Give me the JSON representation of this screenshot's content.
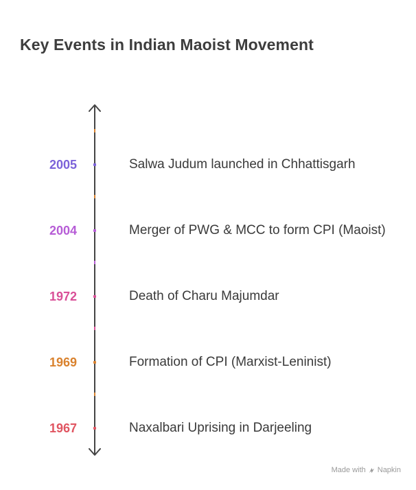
{
  "title": "Key Events in Indian Maoist Movement",
  "events": [
    {
      "year": "2005",
      "description": "Salwa Judum launched in Chhattisgarh",
      "color": "#7b62d9"
    },
    {
      "year": "2004",
      "description": "Merger of PWG & MCC to form CPI (Maoist)",
      "color": "#b65cd6"
    },
    {
      "year": "1972",
      "description": "Death of Charu Majumdar",
      "color": "#d94f97"
    },
    {
      "year": "1969",
      "description": "Formation of CPI (Marxist-Leninist)",
      "color": "#d9822e"
    },
    {
      "year": "1967",
      "description": "Naxalbari Uprising in Darjeeling",
      "color": "#e05561"
    }
  ],
  "axis_tick_colors": [
    "#d9822e",
    "#d9822e",
    "#b65cd6",
    "#d94f97",
    "#d9822e"
  ],
  "credit": {
    "prefix": "Made with",
    "brand": "Napkin",
    "icon": "napkin-logo-icon"
  }
}
